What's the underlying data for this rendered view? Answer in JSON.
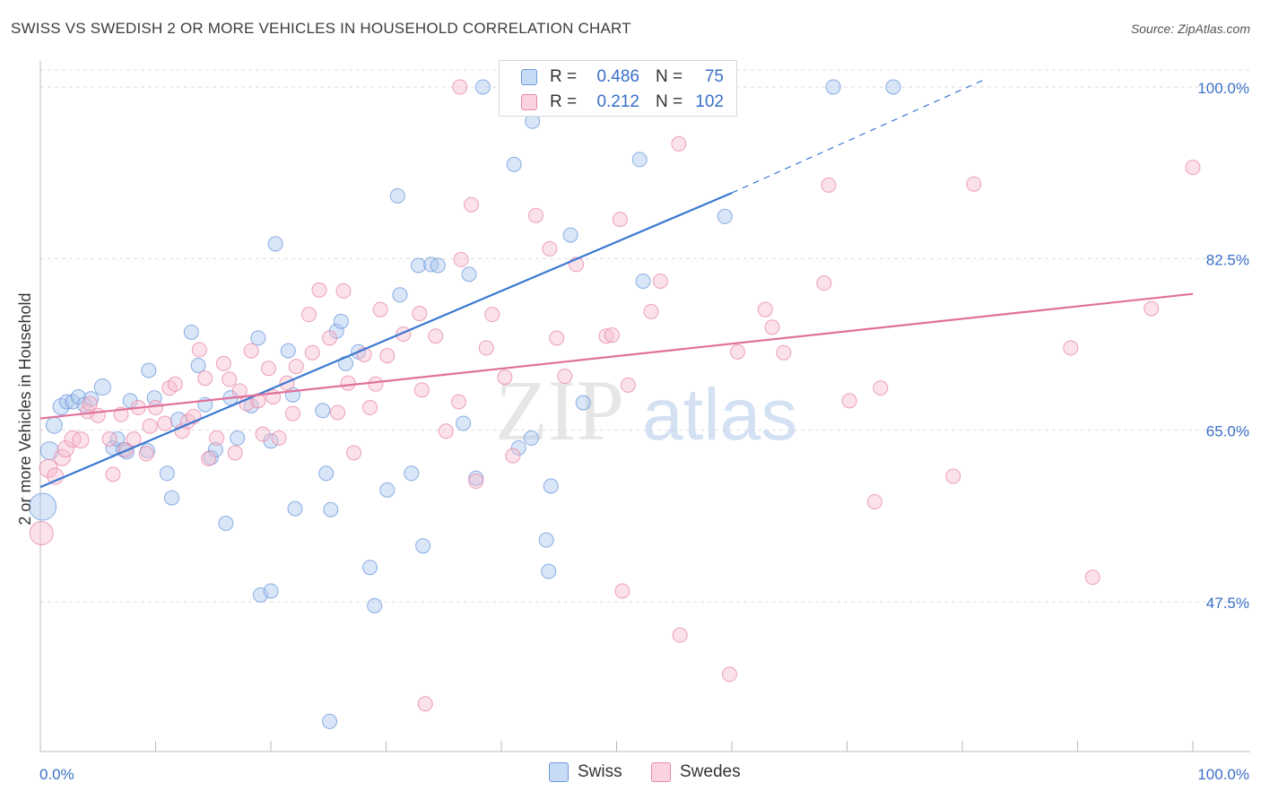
{
  "title": "SWISS VS SWEDISH 2 OR MORE VEHICLES IN HOUSEHOLD CORRELATION CHART",
  "source": "Source: ZipAtlas.com",
  "watermark": {
    "part1": "ZIP",
    "part2": "atlas"
  },
  "legend_top": [
    {
      "r_label": "R =",
      "r_value": "0.486",
      "n_label": "N =",
      "n_value": "75",
      "color": "#aac7ef",
      "border": "#6f9bdc"
    },
    {
      "r_label": "R =",
      "r_value": "0.212",
      "n_label": "N =",
      "n_value": "102",
      "color": "#f7bfd0",
      "border": "#e88aa9"
    }
  ],
  "legend_bottom": [
    {
      "label": "Swiss",
      "color": "#aac7ef",
      "border": "#6f9bdc"
    },
    {
      "label": "Swedes",
      "color": "#f7bfd0",
      "border": "#e88aa9"
    }
  ],
  "chart_data": {
    "type": "scatter",
    "title": "SWISS VS SWEDISH 2 OR MORE VEHICLES IN HOUSEHOLD CORRELATION CHART",
    "xlabel": "",
    "ylabel": "2 or more Vehicles in Household",
    "xlim": [
      0,
      100
    ],
    "ylim": [
      32.5,
      102
    ],
    "x_tick_labels": [
      "0.0%",
      "100.0%"
    ],
    "y_ticks": [
      47.5,
      65.0,
      82.5,
      100.0
    ],
    "y_tick_labels": [
      "47.5%",
      "65.0%",
      "82.5%",
      "100.0%"
    ],
    "grid": true,
    "legend_position": "top-center",
    "colors": {
      "swiss": "#3a78d0",
      "swedes": "#e0719a"
    },
    "series": [
      {
        "name": "Swiss",
        "color": "#3a78d0",
        "trend": {
          "x": [
            0,
            60
          ],
          "y": [
            59.2,
            89.2
          ],
          "dashed_to": [
            82,
            100.8
          ]
        },
        "points": [
          [
            0.2,
            57.2,
            14
          ],
          [
            0.8,
            62.9,
            9
          ],
          [
            1.2,
            65.5,
            8
          ],
          [
            1.8,
            67.4,
            8
          ],
          [
            2.3,
            67.9,
            7
          ],
          [
            2.8,
            67.9,
            7
          ],
          [
            3.3,
            68.4,
            7
          ],
          [
            3.8,
            67.6,
            7
          ],
          [
            4.4,
            68.2,
            7
          ],
          [
            5.4,
            69.4,
            8
          ],
          [
            6.3,
            63.2,
            7
          ],
          [
            6.7,
            64.1,
            7
          ],
          [
            7.2,
            63.0,
            7
          ],
          [
            7.8,
            68.0,
            7
          ],
          [
            7.5,
            62.8,
            7
          ],
          [
            9.3,
            62.9,
            7
          ],
          [
            9.4,
            71.1,
            7
          ],
          [
            9.9,
            68.3,
            7
          ],
          [
            11.0,
            60.6,
            7
          ],
          [
            11.4,
            58.1,
            7
          ],
          [
            12.0,
            66.0,
            8
          ],
          [
            13.1,
            75.0,
            7
          ],
          [
            13.7,
            71.6,
            7
          ],
          [
            14.3,
            67.6,
            7
          ],
          [
            14.8,
            62.2,
            7
          ],
          [
            16.1,
            55.5,
            7
          ],
          [
            15.2,
            63.0,
            7
          ],
          [
            16.5,
            68.3,
            7
          ],
          [
            17.1,
            64.2,
            7
          ],
          [
            18.3,
            67.5,
            7
          ],
          [
            18.9,
            74.4,
            7
          ],
          [
            19.1,
            48.2,
            7
          ],
          [
            20.0,
            63.9,
            7
          ],
          [
            20.4,
            84.0,
            7
          ],
          [
            20.0,
            48.6,
            7
          ],
          [
            21.5,
            73.1,
            7
          ],
          [
            21.9,
            68.6,
            7
          ],
          [
            22.1,
            57.0,
            7
          ],
          [
            24.5,
            67.0,
            7
          ],
          [
            24.8,
            60.6,
            7
          ],
          [
            25.2,
            56.9,
            7
          ],
          [
            25.7,
            75.1,
            7
          ],
          [
            26.1,
            76.1,
            7
          ],
          [
            26.5,
            71.8,
            7
          ],
          [
            27.6,
            73.0,
            7
          ],
          [
            28.6,
            51.0,
            7
          ],
          [
            29.0,
            47.1,
            7
          ],
          [
            30.1,
            58.9,
            7
          ],
          [
            31.0,
            88.9,
            7
          ],
          [
            31.2,
            78.8,
            7
          ],
          [
            32.2,
            60.6,
            7
          ],
          [
            32.8,
            81.8,
            7
          ],
          [
            33.2,
            53.2,
            7
          ],
          [
            33.9,
            81.9,
            7
          ],
          [
            34.5,
            81.8,
            7
          ],
          [
            36.7,
            65.7,
            7
          ],
          [
            37.2,
            80.9,
            7
          ],
          [
            37.8,
            60.1,
            7
          ],
          [
            38.4,
            100.0,
            7
          ],
          [
            41.5,
            63.2,
            7
          ],
          [
            41.1,
            92.1,
            7
          ],
          [
            42.6,
            64.2,
            7
          ],
          [
            42.7,
            96.5,
            7
          ],
          [
            44.3,
            59.3,
            7
          ],
          [
            43.9,
            53.8,
            7
          ],
          [
            44.1,
            50.6,
            7
          ],
          [
            46.0,
            84.9,
            7
          ],
          [
            47.1,
            67.8,
            7
          ],
          [
            52.0,
            92.6,
            7
          ],
          [
            52.3,
            80.2,
            7
          ],
          [
            59.4,
            86.8,
            7
          ],
          [
            68.8,
            100.0,
            7
          ],
          [
            74.0,
            100.0,
            7
          ],
          [
            25.1,
            35.3,
            7
          ],
          [
            46.5,
            100.0,
            7
          ]
        ]
      },
      {
        "name": "Swedes",
        "color": "#e0719a",
        "trend": {
          "x": [
            0,
            100
          ],
          "y": [
            66.2,
            78.9
          ]
        },
        "points": [
          [
            0.1,
            54.5,
            12
          ],
          [
            0.7,
            61.1,
            9
          ],
          [
            1.3,
            60.3,
            8
          ],
          [
            1.9,
            62.2,
            8
          ],
          [
            2.2,
            63.1,
            8
          ],
          [
            2.8,
            64.1,
            8
          ],
          [
            3.5,
            64.0,
            8
          ],
          [
            4.1,
            66.9,
            7
          ],
          [
            4.3,
            67.7,
            7
          ],
          [
            5.0,
            66.5,
            7
          ],
          [
            6.0,
            64.1,
            7
          ],
          [
            6.3,
            60.5,
            7
          ],
          [
            7.0,
            66.6,
            7
          ],
          [
            7.4,
            63.0,
            7
          ],
          [
            8.1,
            64.1,
            7
          ],
          [
            8.5,
            67.3,
            7
          ],
          [
            9.2,
            62.6,
            7
          ],
          [
            9.5,
            65.4,
            7
          ],
          [
            10.0,
            67.3,
            7
          ],
          [
            10.8,
            65.7,
            7
          ],
          [
            11.2,
            69.3,
            7
          ],
          [
            11.7,
            69.7,
            7
          ],
          [
            12.3,
            64.9,
            7
          ],
          [
            12.8,
            65.9,
            7
          ],
          [
            13.3,
            66.4,
            7
          ],
          [
            13.8,
            73.2,
            7
          ],
          [
            14.3,
            70.3,
            7
          ],
          [
            14.6,
            62.1,
            7
          ],
          [
            15.3,
            64.2,
            7
          ],
          [
            15.9,
            71.8,
            7
          ],
          [
            16.4,
            70.2,
            7
          ],
          [
            16.9,
            62.7,
            7
          ],
          [
            17.3,
            69.0,
            7
          ],
          [
            17.9,
            67.7,
            7
          ],
          [
            18.3,
            73.1,
            7
          ],
          [
            18.9,
            68.0,
            7
          ],
          [
            19.3,
            64.6,
            7
          ],
          [
            19.8,
            71.3,
            7
          ],
          [
            20.2,
            68.4,
            7
          ],
          [
            20.7,
            64.2,
            7
          ],
          [
            21.4,
            69.8,
            7
          ],
          [
            21.9,
            66.7,
            7
          ],
          [
            22.2,
            71.5,
            7
          ],
          [
            23.3,
            76.8,
            7
          ],
          [
            23.6,
            72.9,
            7
          ],
          [
            24.2,
            79.3,
            7
          ],
          [
            25.1,
            74.4,
            7
          ],
          [
            25.8,
            66.8,
            7
          ],
          [
            26.3,
            79.2,
            7
          ],
          [
            26.7,
            69.8,
            7
          ],
          [
            27.2,
            62.7,
            7
          ],
          [
            28.1,
            72.7,
            7
          ],
          [
            28.6,
            67.3,
            7
          ],
          [
            29.1,
            69.7,
            7
          ],
          [
            29.5,
            77.3,
            7
          ],
          [
            30.1,
            72.6,
            7
          ],
          [
            31.5,
            74.8,
            7
          ],
          [
            32.9,
            76.9,
            7
          ],
          [
            33.1,
            69.1,
            7
          ],
          [
            34.3,
            74.6,
            7
          ],
          [
            35.2,
            64.9,
            7
          ],
          [
            36.3,
            67.9,
            7
          ],
          [
            36.5,
            82.4,
            7
          ],
          [
            37.4,
            88.0,
            7
          ],
          [
            37.8,
            59.8,
            7
          ],
          [
            38.7,
            73.4,
            7
          ],
          [
            39.2,
            76.8,
            7
          ],
          [
            40.3,
            70.4,
            7
          ],
          [
            41.0,
            62.4,
            7
          ],
          [
            43.0,
            86.9,
            7
          ],
          [
            44.2,
            83.5,
            7
          ],
          [
            44.8,
            74.4,
            7
          ],
          [
            45.5,
            70.5,
            7
          ],
          [
            46.5,
            81.9,
            7
          ],
          [
            49.1,
            74.6,
            7
          ],
          [
            49.6,
            74.7,
            7
          ],
          [
            50.3,
            86.5,
            7
          ],
          [
            51.0,
            69.6,
            7
          ],
          [
            53.0,
            77.1,
            7
          ],
          [
            53.8,
            80.2,
            7
          ],
          [
            55.4,
            94.2,
            7
          ],
          [
            56.9,
            98.4,
            7
          ],
          [
            60.5,
            73.0,
            7
          ],
          [
            62.9,
            77.3,
            7
          ],
          [
            63.5,
            75.5,
            7
          ],
          [
            64.5,
            72.9,
            7
          ],
          [
            68.0,
            80.0,
            7
          ],
          [
            68.4,
            90.0,
            7
          ],
          [
            70.2,
            68.0,
            7
          ],
          [
            72.4,
            57.7,
            7
          ],
          [
            72.9,
            69.3,
            7
          ],
          [
            79.2,
            60.3,
            7
          ],
          [
            81.0,
            90.1,
            7
          ],
          [
            89.4,
            73.4,
            7
          ],
          [
            91.3,
            50.0,
            7
          ],
          [
            96.4,
            77.4,
            7
          ],
          [
            100.0,
            91.8,
            7
          ],
          [
            36.4,
            100.0,
            7
          ],
          [
            50.5,
            48.6,
            7
          ],
          [
            55.5,
            44.1,
            7
          ],
          [
            59.8,
            40.1,
            7
          ],
          [
            33.4,
            37.1,
            7
          ]
        ]
      }
    ]
  }
}
